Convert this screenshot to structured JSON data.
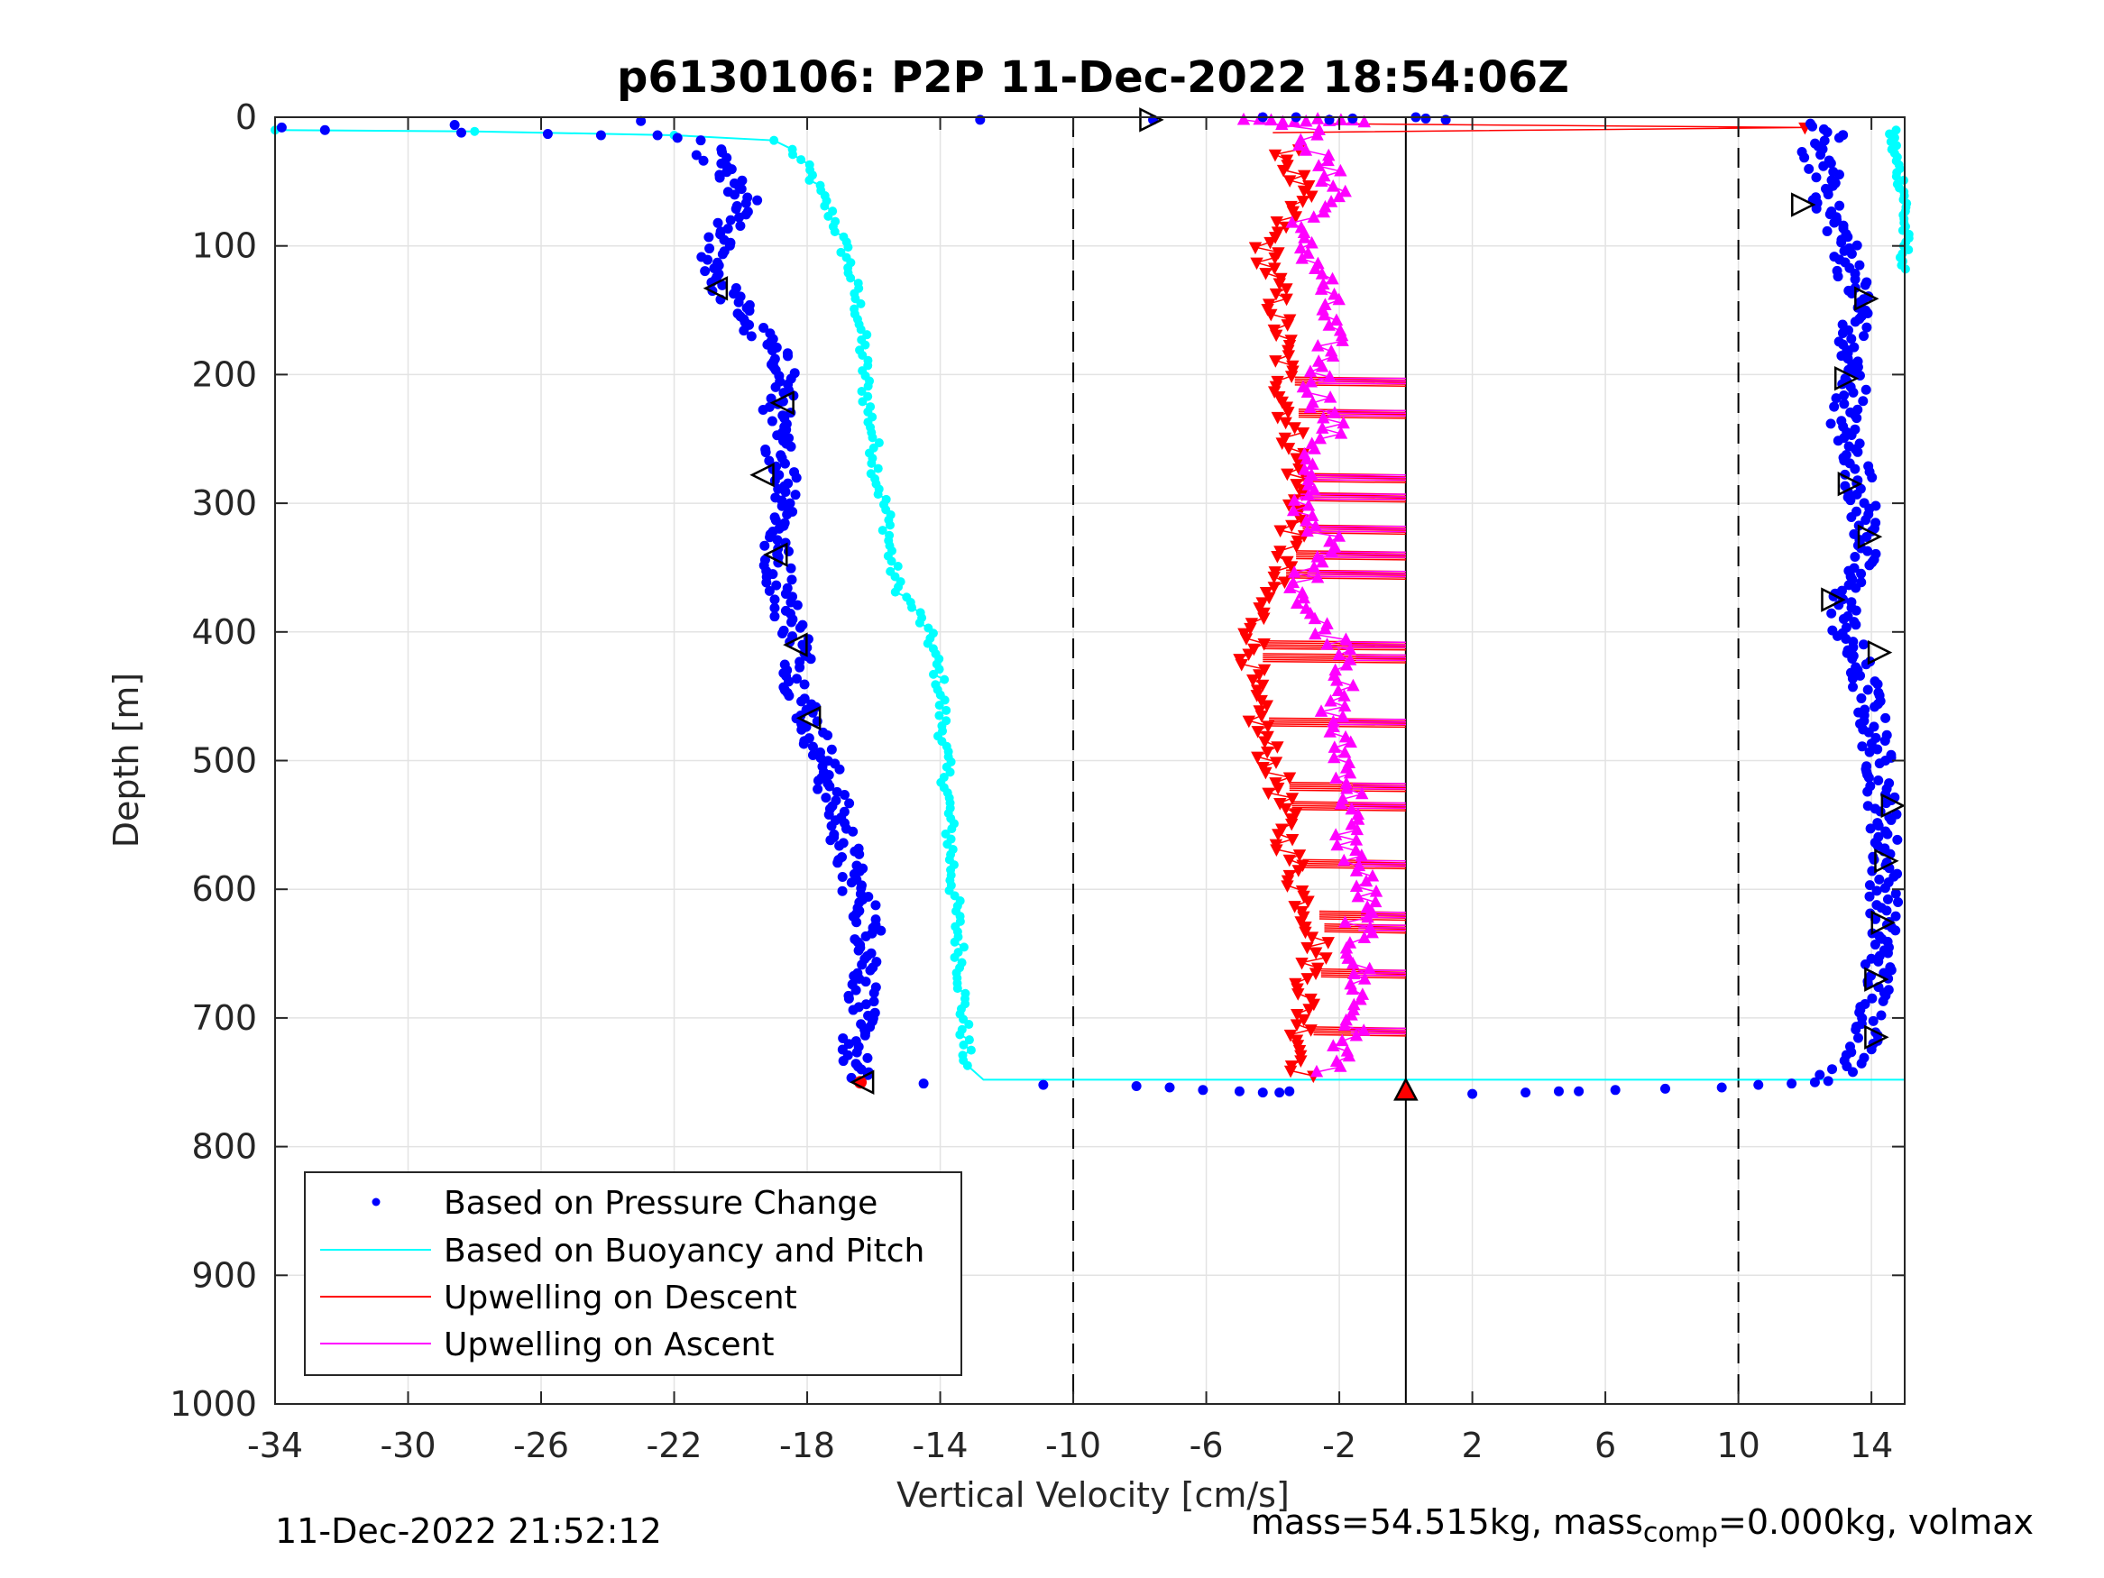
{
  "chart_data": {
    "type": "scatter",
    "title": "p6130106: P2P 11-Dec-2022 18:54:06Z",
    "xlabel": "Vertical Velocity [cm/s]",
    "ylabel": "Depth [m]",
    "xlim": [
      -34,
      15
    ],
    "ylim": [
      0,
      1000
    ],
    "y_reversed": true,
    "grid": true,
    "legend_position": "bottom-left",
    "xticks": [
      -34,
      -30,
      -26,
      -22,
      -18,
      -14,
      -10,
      -6,
      -2,
      2,
      6,
      10,
      14
    ],
    "xtick_labels": [
      "-34",
      "-30",
      "-26",
      "-22",
      "-18",
      "-14",
      "-10",
      "-6",
      "-2",
      "2",
      "6",
      "10",
      "14"
    ],
    "yticks": [
      0,
      100,
      200,
      300,
      400,
      500,
      600,
      700,
      800,
      900,
      1000
    ],
    "ytick_labels": [
      "0",
      "100",
      "200",
      "300",
      "400",
      "500",
      "600",
      "700",
      "800",
      "900",
      "1000"
    ],
    "reference_lines": {
      "dashed_x": [
        -10,
        10
      ],
      "solid_x": [
        0
      ]
    },
    "series": [
      {
        "name": "Based on Pressure Change",
        "color": "#0000ff",
        "marker": "dot",
        "descent_profile": [
          [
            -21,
            25
          ],
          [
            -20.5,
            45
          ],
          [
            -19.9,
            65
          ],
          [
            -20.6,
            90
          ],
          [
            -20.8,
            110
          ],
          [
            -20.6,
            130
          ],
          [
            -20,
            150
          ],
          [
            -19.3,
            175
          ],
          [
            -18.6,
            195
          ],
          [
            -18.8,
            215
          ],
          [
            -19,
            240
          ],
          [
            -18.7,
            270
          ],
          [
            -18.5,
            300
          ],
          [
            -19,
            330
          ],
          [
            -18.8,
            360
          ],
          [
            -18.6,
            385
          ],
          [
            -18.2,
            410
          ],
          [
            -18.3,
            440
          ],
          [
            -17.9,
            470
          ],
          [
            -17.5,
            500
          ],
          [
            -17.2,
            530
          ],
          [
            -16.9,
            560
          ],
          [
            -16.7,
            590
          ],
          [
            -16.2,
            620
          ],
          [
            -16.1,
            650
          ],
          [
            -16.3,
            680
          ],
          [
            -16.5,
            710
          ],
          [
            -16.6,
            735
          ],
          [
            -16.5,
            748
          ]
        ],
        "descent_surface_points": [
          [
            -33.8,
            8
          ],
          [
            -32.5,
            10
          ],
          [
            -28.6,
            6
          ],
          [
            -28.4,
            12
          ],
          [
            -25.8,
            13
          ],
          [
            -24.2,
            14
          ],
          [
            -23,
            3
          ],
          [
            -22.5,
            14
          ],
          [
            -21.9,
            16
          ],
          [
            -21.2,
            18
          ],
          [
            -12.8,
            2
          ]
        ],
        "bottom_points": [
          [
            -14.5,
            751
          ],
          [
            -10.9,
            752
          ],
          [
            -8.1,
            753
          ],
          [
            -7.1,
            754
          ],
          [
            -6.1,
            756
          ],
          [
            -5,
            757
          ],
          [
            -4.3,
            758
          ],
          [
            -3.8,
            758
          ],
          [
            -3.5,
            757
          ],
          [
            2,
            759
          ],
          [
            3.6,
            758
          ],
          [
            4.6,
            757
          ],
          [
            5.2,
            757
          ],
          [
            6.3,
            756
          ],
          [
            7.8,
            755
          ],
          [
            9.5,
            754
          ],
          [
            10.6,
            752
          ],
          [
            11.6,
            751
          ],
          [
            12.3,
            750
          ],
          [
            12.7,
            749
          ]
        ],
        "ascent_profile": [
          [
            12.8,
            745
          ],
          [
            13.6,
            735
          ],
          [
            14,
            705
          ],
          [
            14.2,
            670
          ],
          [
            14.3,
            640
          ],
          [
            14.4,
            600
          ],
          [
            14.4,
            560
          ],
          [
            14.3,
            520
          ],
          [
            14.1,
            480
          ],
          [
            13.8,
            440
          ],
          [
            13.2,
            400
          ],
          [
            13.2,
            370
          ],
          [
            13.9,
            330
          ],
          [
            13.7,
            300
          ],
          [
            13.6,
            270
          ],
          [
            13.1,
            240
          ],
          [
            13.5,
            210
          ],
          [
            13.2,
            180
          ],
          [
            13.7,
            150
          ],
          [
            13.4,
            120
          ],
          [
            13.1,
            90
          ],
          [
            12.6,
            70
          ],
          [
            12.8,
            50
          ],
          [
            12.2,
            30
          ],
          [
            12.8,
            15
          ],
          [
            12.2,
            5
          ]
        ],
        "surface_points": [
          [
            -7.6,
            2
          ],
          [
            0.3,
            0
          ],
          [
            0.6,
            1
          ],
          [
            -1.6,
            1
          ],
          [
            -2.3,
            2
          ],
          [
            -3.3,
            0
          ],
          [
            -4.3,
            0
          ],
          [
            1.2,
            2
          ]
        ]
      },
      {
        "name": "Based on Buoyancy and Pitch",
        "color": "#00ffff",
        "marker": "line",
        "descent_profile": [
          [
            -34,
            10
          ],
          [
            -28,
            11
          ],
          [
            -22,
            14
          ],
          [
            -19,
            18
          ],
          [
            -18.5,
            25
          ],
          [
            -18,
            40
          ],
          [
            -17.6,
            60
          ],
          [
            -17.2,
            80
          ],
          [
            -16.9,
            100
          ],
          [
            -16.6,
            130
          ],
          [
            -16.4,
            160
          ],
          [
            -16.3,
            190
          ],
          [
            -16.2,
            220
          ],
          [
            -16,
            250
          ],
          [
            -15.9,
            280
          ],
          [
            -15.6,
            310
          ],
          [
            -15.5,
            340
          ],
          [
            -15.3,
            365
          ],
          [
            -14.7,
            385
          ],
          [
            -14.3,
            405
          ],
          [
            -14,
            440
          ],
          [
            -13.9,
            480
          ],
          [
            -13.8,
            520
          ],
          [
            -13.7,
            560
          ],
          [
            -13.6,
            600
          ],
          [
            -13.4,
            650
          ],
          [
            -13.3,
            700
          ],
          [
            -13.2,
            740
          ],
          [
            -12.7,
            748
          ],
          [
            15,
            748
          ]
        ],
        "ascent_profile": [
          [
            14.6,
            10
          ],
          [
            14.7,
            30
          ],
          [
            15,
            60
          ],
          [
            15,
            110
          ],
          [
            14.8,
            125
          ]
        ]
      },
      {
        "name": "Upwelling on Descent",
        "color": "#ff0000",
        "marker": "triangle-down",
        "profile": [
          [
            -3.6,
            25
          ],
          [
            -3.2,
            60
          ],
          [
            -4.2,
            100
          ],
          [
            -3.9,
            140
          ],
          [
            -3.7,
            180
          ],
          [
            -3.6,
            220
          ],
          [
            -3.3,
            260
          ],
          [
            -3.2,
            300
          ],
          [
            -3.6,
            340
          ],
          [
            -4.4,
            380
          ],
          [
            -4.6,
            420
          ],
          [
            -4.7,
            445
          ],
          [
            -4.3,
            480
          ],
          [
            -3.8,
            520
          ],
          [
            -3.6,
            560
          ],
          [
            -3.2,
            600
          ],
          [
            -2.6,
            640
          ],
          [
            -3,
            680
          ],
          [
            -3.1,
            720
          ],
          [
            -3.1,
            748
          ]
        ],
        "spikes": [
          [
            -2,
            5
          ],
          [
            12,
            8
          ]
        ],
        "bottom_marker": [
          0,
          757
        ]
      },
      {
        "name": "Upwelling on Ascent",
        "color": "#ff00ff",
        "marker": "triangle-up",
        "profile": [
          [
            -2.3,
            745
          ],
          [
            -1.7,
            715
          ],
          [
            -1.4,
            680
          ],
          [
            -1.5,
            640
          ],
          [
            -1.2,
            600
          ],
          [
            -1.8,
            560
          ],
          [
            -1.6,
            520
          ],
          [
            -2.1,
            480
          ],
          [
            -2.2,
            450
          ],
          [
            -1.5,
            420
          ],
          [
            -2.8,
            390
          ],
          [
            -3.1,
            360
          ],
          [
            -2.3,
            330
          ],
          [
            -3.2,
            300
          ],
          [
            -3,
            270
          ],
          [
            -2.2,
            240
          ],
          [
            -2.7,
            210
          ],
          [
            -2.3,
            180
          ],
          [
            -2.4,
            150
          ],
          [
            -2.5,
            120
          ],
          [
            -3.4,
            90
          ],
          [
            -1.9,
            60
          ],
          [
            -2.7,
            30
          ],
          [
            -3,
            10
          ],
          [
            -4.5,
            2
          ]
        ],
        "spikes_to_zero": [
          205,
          230,
          280,
          295,
          320,
          340,
          355,
          410,
          420,
          470,
          520,
          535,
          580,
          620,
          630,
          665,
          710
        ]
      }
    ],
    "direction_markers_left": [
      [
        -20.7,
        133
      ],
      [
        -18.7,
        222
      ],
      [
        -19.3,
        278
      ],
      [
        -18.9,
        340
      ],
      [
        -18.3,
        410
      ],
      [
        -17.9,
        467
      ],
      [
        -16.3,
        750
      ]
    ],
    "direction_markers_right": [
      [
        -7.7,
        2
      ],
      [
        11.9,
        68
      ],
      [
        13.8,
        141
      ],
      [
        13.2,
        203
      ],
      [
        13.3,
        285
      ],
      [
        13.9,
        326
      ],
      [
        12.8,
        375
      ],
      [
        14.2,
        416
      ],
      [
        14.6,
        535
      ],
      [
        14.4,
        578
      ],
      [
        14.3,
        626
      ],
      [
        14.1,
        670
      ],
      [
        14.1,
        715
      ]
    ]
  },
  "footer": {
    "timestamp": "11-Dec-2022 21:52:12",
    "mass_text": "mass=54.515kg, mass",
    "comp_sub": "comp",
    "mass_comp_text": "=0.000kg, volmax"
  }
}
